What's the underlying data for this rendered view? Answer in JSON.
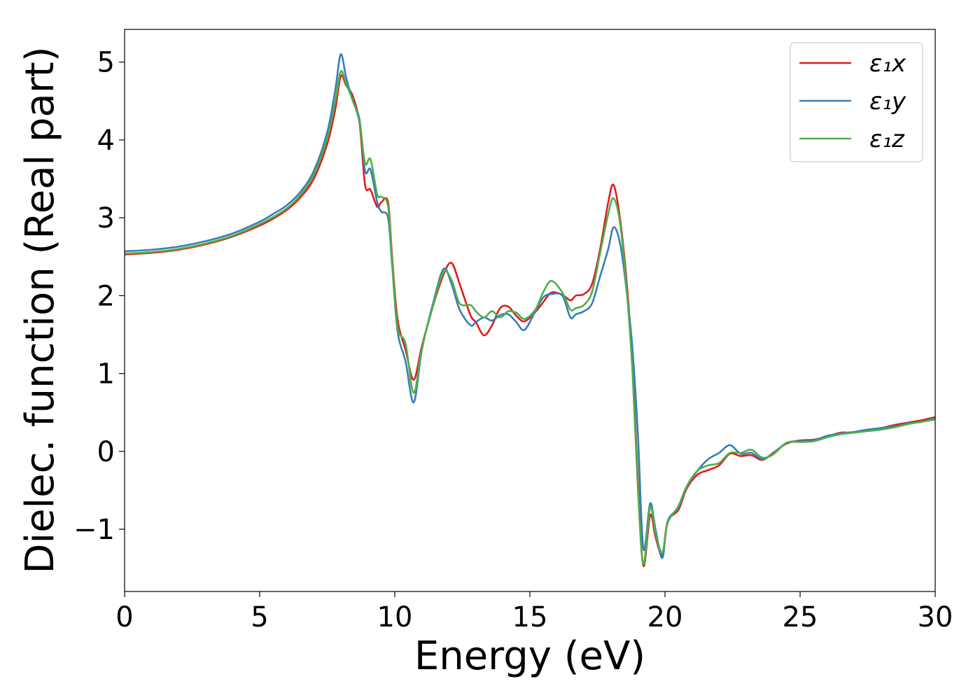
{
  "chart_data": {
    "type": "line",
    "xlabel": "Energy (eV)",
    "ylabel": "Dielec. function (Real part)",
    "xlim": [
      0,
      30
    ],
    "ylim": [
      -1.8,
      5.42
    ],
    "xticks": [
      0,
      5,
      10,
      15,
      20,
      25,
      30
    ],
    "xtick_labels": [
      "0",
      "5",
      "10",
      "15",
      "20",
      "25",
      "30"
    ],
    "yticks": [
      -1,
      0,
      1,
      2,
      3,
      4,
      5
    ],
    "ytick_labels": [
      "−1",
      "0",
      "1",
      "2",
      "3",
      "4",
      "5"
    ],
    "grid": false,
    "legend_position": "top-right",
    "series": [
      {
        "name": "ε₁x",
        "color": "#e41a1c",
        "points": [
          [
            0,
            2.53
          ],
          [
            1,
            2.55
          ],
          [
            2,
            2.59
          ],
          [
            3,
            2.66
          ],
          [
            4,
            2.76
          ],
          [
            5,
            2.9
          ],
          [
            5.5,
            2.99
          ],
          [
            6,
            3.1
          ],
          [
            6.5,
            3.26
          ],
          [
            7,
            3.5
          ],
          [
            7.5,
            3.95
          ],
          [
            7.8,
            4.4
          ],
          [
            8,
            4.82
          ],
          [
            8.2,
            4.7
          ],
          [
            8.45,
            4.56
          ],
          [
            8.7,
            4.2
          ],
          [
            8.9,
            3.42
          ],
          [
            9.1,
            3.36
          ],
          [
            9.35,
            3.14
          ],
          [
            9.5,
            3.2
          ],
          [
            9.75,
            3.2
          ],
          [
            9.9,
            2.5
          ],
          [
            10.1,
            1.7
          ],
          [
            10.4,
            1.3
          ],
          [
            10.7,
            0.92
          ],
          [
            11.0,
            1.35
          ],
          [
            11.4,
            1.85
          ],
          [
            11.8,
            2.27
          ],
          [
            12.1,
            2.42
          ],
          [
            12.4,
            2.15
          ],
          [
            12.8,
            1.75
          ],
          [
            13.0,
            1.66
          ],
          [
            13.3,
            1.49
          ],
          [
            13.6,
            1.62
          ],
          [
            13.9,
            1.84
          ],
          [
            14.2,
            1.86
          ],
          [
            14.5,
            1.74
          ],
          [
            14.8,
            1.67
          ],
          [
            15.2,
            1.79
          ],
          [
            15.5,
            1.92
          ],
          [
            15.8,
            2.04
          ],
          [
            16.2,
            2.01
          ],
          [
            16.5,
            1.94
          ],
          [
            16.7,
            2.0
          ],
          [
            17.0,
            2.02
          ],
          [
            17.3,
            2.15
          ],
          [
            17.6,
            2.6
          ],
          [
            17.9,
            3.2
          ],
          [
            18.1,
            3.42
          ],
          [
            18.35,
            2.95
          ],
          [
            18.6,
            2.1
          ],
          [
            18.8,
            1.1
          ],
          [
            19.0,
            -0.4
          ],
          [
            19.2,
            -1.47
          ],
          [
            19.45,
            -0.82
          ],
          [
            19.65,
            -1.1
          ],
          [
            19.9,
            -1.33
          ],
          [
            20.1,
            -0.9
          ],
          [
            20.5,
            -0.75
          ],
          [
            20.8,
            -0.48
          ],
          [
            21.2,
            -0.3
          ],
          [
            21.6,
            -0.24
          ],
          [
            22.0,
            -0.18
          ],
          [
            22.4,
            -0.03
          ],
          [
            22.8,
            -0.06
          ],
          [
            23.2,
            -0.05
          ],
          [
            23.6,
            -0.11
          ],
          [
            24.0,
            -0.02
          ],
          [
            24.5,
            0.1
          ],
          [
            25.0,
            0.14
          ],
          [
            25.5,
            0.15
          ],
          [
            26.0,
            0.19
          ],
          [
            26.5,
            0.24
          ],
          [
            27.0,
            0.24
          ],
          [
            27.5,
            0.27
          ],
          [
            28.0,
            0.3
          ],
          [
            28.5,
            0.34
          ],
          [
            29.0,
            0.37
          ],
          [
            29.5,
            0.4
          ],
          [
            30.0,
            0.44
          ]
        ]
      },
      {
        "name": "ε₁y",
        "color": "#377eb8",
        "points": [
          [
            0,
            2.57
          ],
          [
            1,
            2.59
          ],
          [
            2,
            2.63
          ],
          [
            3,
            2.7
          ],
          [
            4,
            2.8
          ],
          [
            5,
            2.95
          ],
          [
            5.5,
            3.05
          ],
          [
            6,
            3.16
          ],
          [
            6.5,
            3.33
          ],
          [
            7,
            3.6
          ],
          [
            7.5,
            4.1
          ],
          [
            7.8,
            4.65
          ],
          [
            8,
            5.1
          ],
          [
            8.2,
            4.8
          ],
          [
            8.45,
            4.5
          ],
          [
            8.7,
            4.25
          ],
          [
            8.9,
            3.6
          ],
          [
            9.1,
            3.62
          ],
          [
            9.35,
            3.2
          ],
          [
            9.5,
            3.08
          ],
          [
            9.75,
            3.0
          ],
          [
            9.9,
            2.4
          ],
          [
            10.1,
            1.55
          ],
          [
            10.4,
            1.15
          ],
          [
            10.7,
            0.63
          ],
          [
            11.0,
            1.3
          ],
          [
            11.4,
            1.88
          ],
          [
            11.8,
            2.34
          ],
          [
            12.1,
            2.15
          ],
          [
            12.4,
            1.82
          ],
          [
            12.8,
            1.62
          ],
          [
            13.0,
            1.66
          ],
          [
            13.3,
            1.72
          ],
          [
            13.6,
            1.68
          ],
          [
            13.9,
            1.75
          ],
          [
            14.2,
            1.76
          ],
          [
            14.5,
            1.66
          ],
          [
            14.8,
            1.56
          ],
          [
            15.2,
            1.8
          ],
          [
            15.5,
            1.98
          ],
          [
            15.8,
            2.02
          ],
          [
            16.2,
            2.0
          ],
          [
            16.5,
            1.72
          ],
          [
            16.7,
            1.76
          ],
          [
            17.0,
            1.8
          ],
          [
            17.3,
            1.9
          ],
          [
            17.6,
            2.25
          ],
          [
            17.9,
            2.6
          ],
          [
            18.1,
            2.88
          ],
          [
            18.35,
            2.65
          ],
          [
            18.6,
            2.0
          ],
          [
            18.8,
            1.3
          ],
          [
            19.0,
            0.2
          ],
          [
            19.2,
            -1.25
          ],
          [
            19.45,
            -0.67
          ],
          [
            19.65,
            -1.0
          ],
          [
            19.9,
            -1.37
          ],
          [
            20.1,
            -0.9
          ],
          [
            20.5,
            -0.72
          ],
          [
            20.8,
            -0.46
          ],
          [
            21.2,
            -0.25
          ],
          [
            21.6,
            -0.1
          ],
          [
            22.0,
            -0.02
          ],
          [
            22.4,
            0.08
          ],
          [
            22.8,
            -0.03
          ],
          [
            23.2,
            -0.02
          ],
          [
            23.6,
            -0.1
          ],
          [
            24.0,
            -0.03
          ],
          [
            24.5,
            0.11
          ],
          [
            25.0,
            0.13
          ],
          [
            25.5,
            0.14
          ],
          [
            26.0,
            0.2
          ],
          [
            26.5,
            0.23
          ],
          [
            27.0,
            0.25
          ],
          [
            27.5,
            0.28
          ],
          [
            28.0,
            0.3
          ],
          [
            28.5,
            0.32
          ],
          [
            29.0,
            0.36
          ],
          [
            29.5,
            0.38
          ],
          [
            30.0,
            0.43
          ]
        ]
      },
      {
        "name": "ε₁z",
        "color": "#4daf4a",
        "points": [
          [
            0,
            2.54
          ],
          [
            1,
            2.56
          ],
          [
            2,
            2.6
          ],
          [
            3,
            2.67
          ],
          [
            4,
            2.77
          ],
          [
            5,
            2.92
          ],
          [
            5.5,
            3.01
          ],
          [
            6,
            3.12
          ],
          [
            6.5,
            3.29
          ],
          [
            7,
            3.55
          ],
          [
            7.5,
            4.02
          ],
          [
            7.8,
            4.5
          ],
          [
            8,
            4.88
          ],
          [
            8.2,
            4.72
          ],
          [
            8.45,
            4.5
          ],
          [
            8.7,
            4.22
          ],
          [
            8.9,
            3.7
          ],
          [
            9.1,
            3.75
          ],
          [
            9.35,
            3.3
          ],
          [
            9.5,
            3.27
          ],
          [
            9.75,
            3.15
          ],
          [
            9.9,
            2.45
          ],
          [
            10.1,
            1.6
          ],
          [
            10.4,
            1.38
          ],
          [
            10.7,
            0.75
          ],
          [
            11.0,
            1.32
          ],
          [
            11.4,
            1.85
          ],
          [
            11.8,
            2.3
          ],
          [
            12.1,
            2.2
          ],
          [
            12.4,
            1.9
          ],
          [
            12.8,
            1.88
          ],
          [
            13.0,
            1.8
          ],
          [
            13.3,
            1.72
          ],
          [
            13.6,
            1.8
          ],
          [
            13.9,
            1.72
          ],
          [
            14.2,
            1.8
          ],
          [
            14.5,
            1.78
          ],
          [
            14.8,
            1.7
          ],
          [
            15.2,
            1.82
          ],
          [
            15.5,
            2.05
          ],
          [
            15.8,
            2.19
          ],
          [
            16.2,
            2.04
          ],
          [
            16.5,
            1.82
          ],
          [
            16.7,
            1.84
          ],
          [
            17.0,
            1.88
          ],
          [
            17.3,
            2.05
          ],
          [
            17.6,
            2.55
          ],
          [
            17.9,
            3.05
          ],
          [
            18.1,
            3.25
          ],
          [
            18.35,
            2.9
          ],
          [
            18.6,
            2.0
          ],
          [
            18.8,
            1.0
          ],
          [
            19.0,
            -0.5
          ],
          [
            19.2,
            -1.45
          ],
          [
            19.45,
            -0.72
          ],
          [
            19.65,
            -1.05
          ],
          [
            19.9,
            -1.3
          ],
          [
            20.1,
            -0.92
          ],
          [
            20.5,
            -0.7
          ],
          [
            20.8,
            -0.45
          ],
          [
            21.2,
            -0.25
          ],
          [
            21.6,
            -0.18
          ],
          [
            22.0,
            -0.15
          ],
          [
            22.4,
            -0.02
          ],
          [
            22.8,
            -0.02
          ],
          [
            23.2,
            0.02
          ],
          [
            23.6,
            -0.08
          ],
          [
            24.0,
            -0.04
          ],
          [
            24.5,
            0.11
          ],
          [
            25.0,
            0.12
          ],
          [
            25.5,
            0.13
          ],
          [
            26.0,
            0.18
          ],
          [
            26.5,
            0.22
          ],
          [
            27.0,
            0.24
          ],
          [
            27.5,
            0.26
          ],
          [
            28.0,
            0.28
          ],
          [
            28.5,
            0.31
          ],
          [
            29.0,
            0.35
          ],
          [
            29.5,
            0.38
          ],
          [
            30.0,
            0.41
          ]
        ]
      }
    ]
  }
}
